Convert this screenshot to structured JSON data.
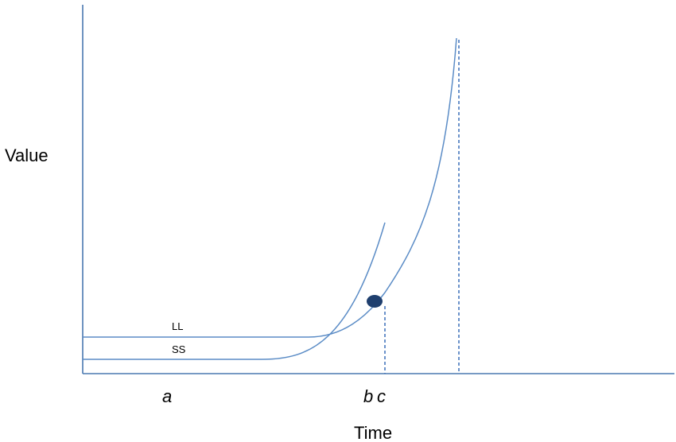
{
  "diagram": {
    "y_axis_label": "Value",
    "x_axis_label": "Time",
    "time_markers": [
      "a",
      "b",
      "c"
    ],
    "curves": [
      {
        "label": "LL"
      },
      {
        "label": "SS"
      }
    ],
    "colors": {
      "axis": "#4a78b0",
      "curve": "#5b8cc6",
      "dashed_line": "#3a6fb8",
      "marker": "#1f3f6e"
    }
  }
}
